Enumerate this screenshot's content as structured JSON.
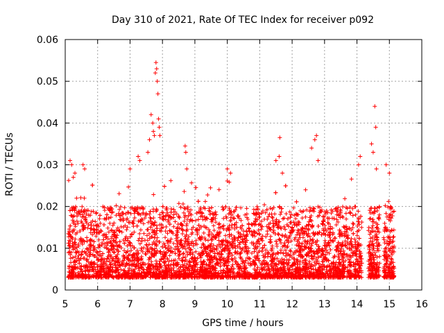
{
  "chart_data": {
    "type": "scatter",
    "title": "Day 310 of 2021, Rate Of TEC Index for receiver p092",
    "xlabel": "GPS time / hours",
    "ylabel": "ROTI / TECUs",
    "xlim": [
      5,
      16
    ],
    "ylim": [
      0,
      0.06
    ],
    "x_ticks": [
      "5",
      "6",
      "7",
      "8",
      "9",
      "10",
      "11",
      "12",
      "13",
      "14",
      "15",
      "16"
    ],
    "y_ticks": [
      "0",
      "0.01",
      "0.02",
      "0.03",
      "0.04",
      "0.05",
      "0.06"
    ],
    "grid": true,
    "marker": "+",
    "color": "#ff0000",
    "series": [
      {
        "name": "ROTI",
        "points": [
          [
            5.15,
            0.031
          ],
          [
            5.2,
            0.03
          ],
          [
            5.25,
            0.027
          ],
          [
            5.3,
            0.028
          ],
          [
            5.35,
            0.022
          ],
          [
            5.55,
            0.03
          ],
          [
            5.6,
            0.029
          ],
          [
            7.0,
            0.029
          ],
          [
            7.25,
            0.032
          ],
          [
            7.3,
            0.031
          ],
          [
            7.55,
            0.033
          ],
          [
            7.6,
            0.036
          ],
          [
            7.65,
            0.042
          ],
          [
            7.7,
            0.04
          ],
          [
            7.72,
            0.038
          ],
          [
            7.75,
            0.037
          ],
          [
            7.78,
            0.052
          ],
          [
            7.8,
            0.0545
          ],
          [
            7.82,
            0.053
          ],
          [
            7.84,
            0.05
          ],
          [
            7.86,
            0.047
          ],
          [
            7.88,
            0.041
          ],
          [
            7.9,
            0.039
          ],
          [
            7.92,
            0.037
          ],
          [
            8.7,
            0.0345
          ],
          [
            8.72,
            0.033
          ],
          [
            8.75,
            0.029
          ],
          [
            10.0,
            0.029
          ],
          [
            10.1,
            0.028
          ],
          [
            11.5,
            0.031
          ],
          [
            11.6,
            0.032
          ],
          [
            11.62,
            0.0365
          ],
          [
            11.7,
            0.028
          ],
          [
            12.6,
            0.034
          ],
          [
            12.7,
            0.036
          ],
          [
            12.75,
            0.037
          ],
          [
            12.8,
            0.031
          ],
          [
            14.05,
            0.03
          ],
          [
            14.1,
            0.032
          ],
          [
            14.45,
            0.035
          ],
          [
            14.5,
            0.033
          ],
          [
            14.55,
            0.044
          ],
          [
            14.58,
            0.039
          ],
          [
            14.6,
            0.029
          ],
          [
            14.9,
            0.03
          ],
          [
            15.0,
            0.028
          ]
        ]
      }
    ]
  }
}
